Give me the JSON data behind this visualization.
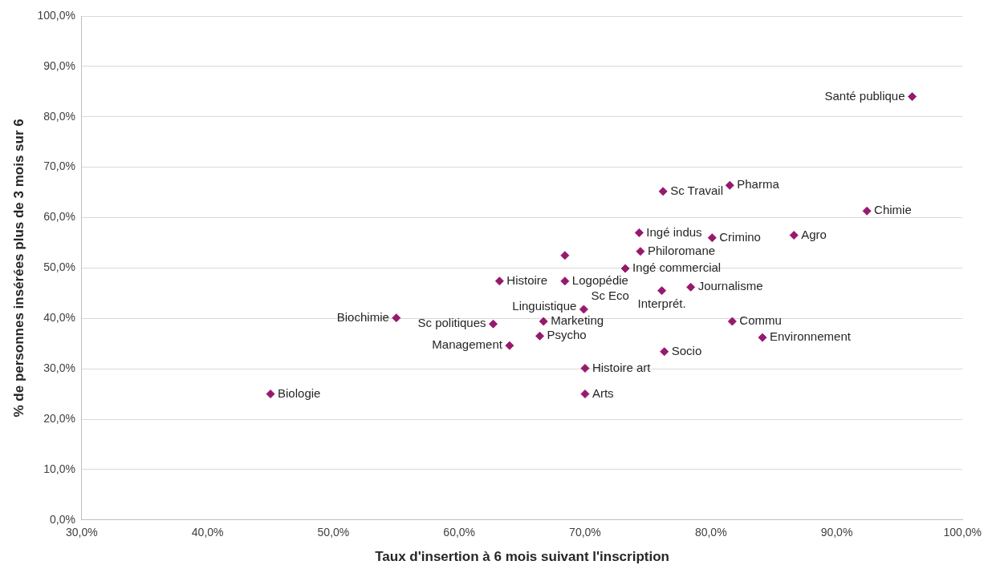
{
  "chart_data": {
    "type": "scatter",
    "xlabel": "Taux d'insertion à 6 mois suivant l'inscription",
    "ylabel": "% de personnes insérées plus de 3 mois sur 6",
    "x": [
      96.0,
      92.4,
      81.5,
      76.2,
      86.6,
      80.1,
      74.3,
      74.4,
      68.4,
      73.2,
      68.4,
      63.2,
      76.1,
      78.4,
      81.7,
      84.1,
      76.3,
      69.9,
      66.7,
      69.9,
      66.4,
      64.0,
      62.7,
      55.0,
      45.0,
      70.0,
      70.0
    ],
    "values": [
      84.0,
      61.3,
      66.4,
      65.2,
      56.5,
      56.0,
      57.0,
      53.3,
      52.5,
      49.9,
      47.4,
      47.4,
      45.5,
      46.2,
      39.4,
      36.2,
      33.4,
      null,
      39.4,
      41.8,
      36.5,
      34.6,
      38.9,
      40.1,
      25.0,
      30.1,
      25.0
    ],
    "color": "#97196f",
    "marker": "diamond",
    "grid": "y",
    "legend": false,
    "xlim": [
      30,
      100
    ],
    "xticks": [
      {
        "value": 30,
        "label": "30,0%"
      },
      {
        "value": 40,
        "label": "40,0%"
      },
      {
        "value": 50,
        "label": "50,0%"
      },
      {
        "value": 60,
        "label": "60,0%"
      },
      {
        "value": 70,
        "label": "70,0%"
      },
      {
        "value": 80,
        "label": "80,0%"
      },
      {
        "value": 90,
        "label": "90,0%"
      },
      {
        "value": 100,
        "label": "100,0%"
      }
    ],
    "ylim": [
      0,
      100
    ],
    "yticks": [
      {
        "value": 0,
        "label": "0,0%"
      },
      {
        "value": 10,
        "label": "10,0%"
      },
      {
        "value": 20,
        "label": "20,0%"
      },
      {
        "value": 30,
        "label": "30,0%"
      },
      {
        "value": 40,
        "label": "40,0%"
      },
      {
        "value": 50,
        "label": "50,0%"
      },
      {
        "value": 60,
        "label": "60,0%"
      },
      {
        "value": 70,
        "label": "70,0%"
      },
      {
        "value": 80,
        "label": "80,0%"
      },
      {
        "value": 90,
        "label": "90,0%"
      },
      {
        "value": 100,
        "label": "100,0%"
      }
    ],
    "annotations": [
      {
        "text": "Santé publique",
        "x": 96.0,
        "y": 84.0
      },
      {
        "text": "Chimie",
        "x": 92.4,
        "y": 61.3
      },
      {
        "text": "Pharma",
        "x": 81.5,
        "y": 66.4
      },
      {
        "text": "Sc Travail",
        "x": 76.2,
        "y": 65.2
      },
      {
        "text": "Agro",
        "x": 86.6,
        "y": 56.5
      },
      {
        "text": "Crimino",
        "x": 80.1,
        "y": 56.0
      },
      {
        "text": "Ingé indus",
        "x": 74.3,
        "y": 57.0
      },
      {
        "text": "Philoromane",
        "x": 74.4,
        "y": 53.3
      },
      {
        "text": "Ingé commercial",
        "x": 73.2,
        "y": 49.9
      },
      {
        "text": "Logopédie",
        "x": 68.4,
        "y": 47.4
      },
      {
        "text": "Histoire",
        "x": 63.2,
        "y": 47.4
      },
      {
        "text": "Interprét.",
        "x": 76.1,
        "y": 45.5
      },
      {
        "text": "Journalisme",
        "x": 78.4,
        "y": 46.2
      },
      {
        "text": "Commu",
        "x": 81.7,
        "y": 39.4
      },
      {
        "text": "Environnement",
        "x": 84.1,
        "y": 36.2
      },
      {
        "text": "Socio",
        "x": 76.3,
        "y": 33.4
      },
      {
        "text": "Linguistique",
        "x": 69.9,
        "y": 42.3
      },
      {
        "text": "Marketing",
        "x": 66.7,
        "y": 39.4
      },
      {
        "text": "Sc Eco",
        "x": 69.9,
        "y": 41.8
      },
      {
        "text": "Psycho",
        "x": 66.4,
        "y": 36.5
      },
      {
        "text": "Management",
        "x": 64.0,
        "y": 34.6
      },
      {
        "text": "Sc politiques",
        "x": 62.7,
        "y": 38.9
      },
      {
        "text": "Biochimie",
        "x": 55.0,
        "y": 40.1
      },
      {
        "text": "Biologie",
        "x": 45.0,
        "y": 25.0
      },
      {
        "text": "Histoire art",
        "x": 70.0,
        "y": 30.1
      },
      {
        "text": "Arts",
        "x": 70.0,
        "y": 25.0
      }
    ]
  }
}
